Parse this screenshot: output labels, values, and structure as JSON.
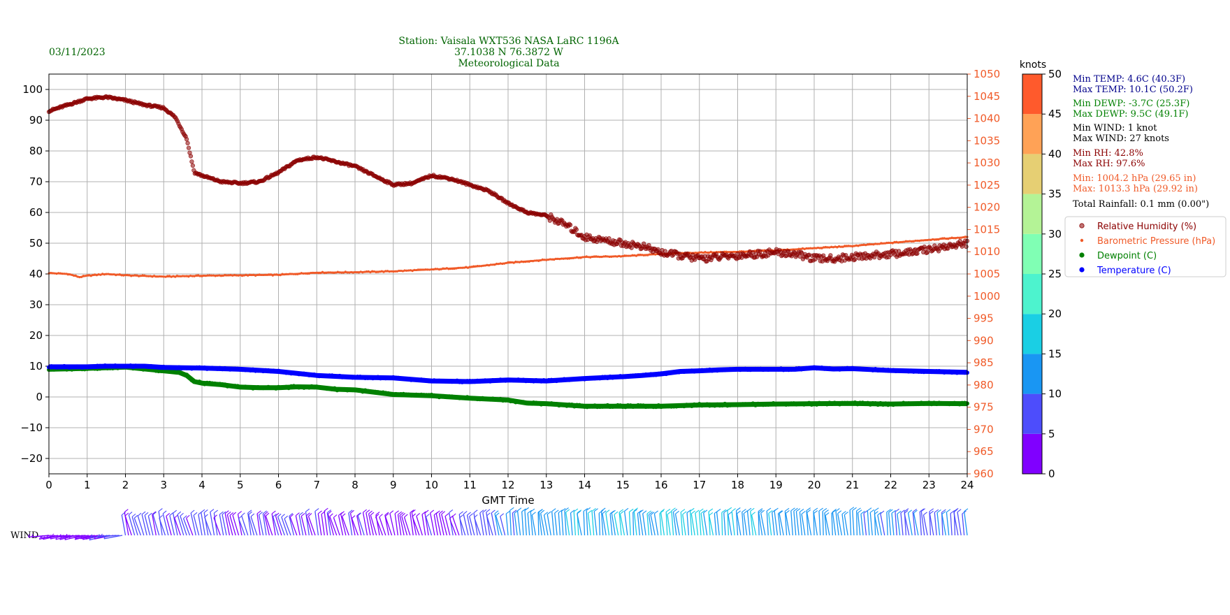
{
  "header": {
    "date": "03/11/2023",
    "title_lines": [
      "Station:  Vaisala WXT536  NASA LaRC 1196A",
      "37.1038 N 76.3872 W",
      "Meteorological Data"
    ]
  },
  "colors": {
    "rh": "#8b0000",
    "pressure": "#f05a28",
    "dewpoint": "#008000",
    "temperature": "#0000ff",
    "grid": "#b0b0b0",
    "header_text": "#006400"
  },
  "chart_data": {
    "type": "scatter",
    "xlabel": "GMT Time",
    "xlim": [
      0,
      24
    ],
    "x_ticks": [
      "0",
      "1",
      "2",
      "3",
      "4",
      "5",
      "6",
      "7",
      "8",
      "9",
      "10",
      "11",
      "12",
      "13",
      "14",
      "15",
      "16",
      "17",
      "18",
      "19",
      "20",
      "21",
      "22",
      "23",
      "24"
    ],
    "ylim_left": [
      -25,
      105
    ],
    "y_ticks_left": [
      "100",
      "90",
      "80",
      "70",
      "60",
      "50",
      "40",
      "30",
      "20",
      "10",
      "0",
      "−10",
      "−20"
    ],
    "ylim_right": [
      960,
      1050
    ],
    "y_ticks_right": [
      "1050",
      "1045",
      "1040",
      "1035",
      "1030",
      "1025",
      "1020",
      "1015",
      "1010",
      "1005",
      "1000",
      "995",
      "990",
      "985",
      "980",
      "975",
      "970",
      "965",
      "960"
    ],
    "grid": true,
    "legend_position": "right",
    "series": [
      {
        "name": "Relative Humidity (%)",
        "axis": "left",
        "x": [
          0,
          0.5,
          1,
          1.5,
          2,
          2.5,
          3,
          3.3,
          3.6,
          3.8,
          4,
          4.5,
          5,
          5.5,
          6,
          6.5,
          7,
          7.5,
          8,
          8.5,
          9,
          9.5,
          10,
          10.5,
          11,
          11.5,
          12,
          12.5,
          13,
          13.5,
          14,
          14.5,
          15,
          15.5,
          16,
          16.5,
          17,
          17.5,
          18,
          18.5,
          19,
          19.5,
          20,
          20.5,
          21,
          21.5,
          22,
          22.5,
          23,
          23.5,
          24
        ],
        "y": [
          93,
          95,
          97,
          97.5,
          96.5,
          95,
          94,
          91,
          84,
          73,
          72,
          70,
          69.5,
          70,
          73,
          77,
          78,
          76.5,
          75,
          72,
          69,
          69.5,
          72,
          71,
          69,
          67,
          63,
          60,
          59,
          56,
          52,
          51,
          50,
          49,
          47,
          46,
          45,
          45.5,
          46,
          46.5,
          47,
          46.5,
          45,
          45,
          45.5,
          46,
          46.5,
          47,
          48,
          49,
          50
        ]
      },
      {
        "name": "Barometric Pressure (hPa)",
        "axis": "right",
        "x": [
          0,
          0.5,
          0.8,
          1,
          1.5,
          2,
          3,
          4,
          5,
          6,
          7,
          8,
          9,
          10,
          11,
          12,
          13,
          14,
          15,
          16,
          17,
          18,
          19,
          20,
          21,
          22,
          23,
          23.5,
          24
        ],
        "y": [
          1005.2,
          1005,
          1004.3,
          1004.6,
          1005,
          1004.7,
          1004.4,
          1004.6,
          1004.7,
          1004.8,
          1005.3,
          1005.4,
          1005.6,
          1006,
          1006.5,
          1007.5,
          1008.2,
          1008.8,
          1009,
          1009.5,
          1009.8,
          1010,
          1010.3,
          1010.8,
          1011.3,
          1012,
          1012.7,
          1013,
          1013.3
        ]
      },
      {
        "name": "Dewpoint (C)",
        "axis": "left",
        "x": [
          0,
          1,
          2,
          3,
          3.4,
          3.6,
          3.8,
          4,
          4.5,
          5,
          5.5,
          6,
          6.5,
          7,
          7.5,
          8,
          9,
          10,
          11,
          12,
          12.5,
          13,
          14,
          15,
          16,
          17,
          18,
          19,
          20,
          21,
          22,
          23,
          24
        ],
        "y": [
          9,
          9.3,
          9.7,
          8.5,
          8,
          7,
          5,
          4.5,
          4,
          3.2,
          3,
          3,
          3.3,
          3.2,
          2.5,
          2.3,
          0.8,
          0.4,
          -0.4,
          -1,
          -2,
          -2.2,
          -3,
          -3,
          -3,
          -2.6,
          -2.5,
          -2.3,
          -2.2,
          -2.1,
          -2.3,
          -2.1,
          -2.2
        ]
      },
      {
        "name": "Temperature (C)",
        "axis": "left",
        "x": [
          0,
          1,
          1.5,
          2,
          2.5,
          3,
          4,
          5,
          6,
          7,
          8,
          9,
          10,
          11,
          12,
          13,
          14,
          15,
          15.5,
          16,
          16.5,
          17,
          17.5,
          18,
          18.5,
          19,
          19.5,
          20,
          20.5,
          21,
          22,
          23,
          24
        ],
        "y": [
          9.8,
          9.8,
          10,
          10,
          10,
          9.6,
          9.4,
          9,
          8.3,
          7,
          6.4,
          6.2,
          5.2,
          5,
          5.5,
          5.2,
          6,
          6.6,
          7,
          7.5,
          8.3,
          8.5,
          8.8,
          9,
          9,
          9,
          9,
          9.5,
          9.1,
          9.2,
          8.6,
          8.3,
          8.0
        ]
      }
    ]
  },
  "colorbar": {
    "label": "knots",
    "ticks": [
      "50",
      "45",
      "40",
      "35",
      "30",
      "25",
      "20",
      "15",
      "10",
      "5",
      "0"
    ],
    "colors": [
      "#8000ff",
      "#4d4dfc",
      "#1996f3",
      "#1acfe4",
      "#4df3ce",
      "#80ffb4",
      "#b4f396",
      "#e6cf73",
      "#ffa256",
      "#ff5a2c",
      "#ff0000"
    ]
  },
  "stats": [
    {
      "text": "Min TEMP: 4.6C (40.3F)",
      "color": "#00008b"
    },
    {
      "text": "Max TEMP: 10.1C (50.2F)",
      "color": "#00008b"
    },
    {
      "text": "Min DEWP: -3.7C (25.3F)",
      "color": "#008000"
    },
    {
      "text": "Max DEWP: 9.5C (49.1F)",
      "color": "#008000"
    },
    {
      "text": "Min WIND: 1 knot",
      "color": "#000000"
    },
    {
      "text": "Max WIND: 27 knots",
      "color": "#000000"
    },
    {
      "text": "Min RH: 42.8%",
      "color": "#8b0000"
    },
    {
      "text": "Max RH: 97.6%",
      "color": "#8b0000"
    },
    {
      "text": "Min: 1004.2 hPa (29.65 in)",
      "color": "#f05a28"
    },
    {
      "text": "Max: 1013.3 hPa (29.92 in)",
      "color": "#f05a28"
    },
    {
      "text": "Total Rainfall: 0.1 mm (0.00\")",
      "color": "#000000"
    }
  ],
  "legend": [
    {
      "label": "Relative Humidity (%)",
      "color": "#8b0000",
      "marker": "open-dot"
    },
    {
      "label": "Barometric Pressure (hPa)",
      "color": "#f05a28",
      "marker": "small-dot"
    },
    {
      "label": "Dewpoint (C)",
      "color": "#008000",
      "marker": "dot"
    },
    {
      "label": "Temperature (C)",
      "color": "#0000ff",
      "marker": "dot"
    }
  ],
  "wind": {
    "label": "WIND",
    "hours": [
      0,
      1,
      2,
      3,
      4,
      5,
      6,
      7,
      8,
      9,
      10,
      11,
      12,
      13,
      14,
      15,
      16,
      17,
      18,
      19,
      20,
      21,
      22,
      23,
      24
    ],
    "speed_knots": [
      3,
      3,
      5,
      6,
      6,
      5,
      5,
      5,
      4,
      4,
      4,
      6,
      10,
      14,
      15,
      15,
      15,
      15,
      15,
      14,
      13,
      12,
      10,
      9,
      9
    ]
  }
}
